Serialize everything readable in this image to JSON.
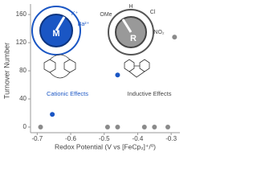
{
  "chart_data": {
    "type": "scatter",
    "x_label": "Redox Potential (V vs [FeCp₂]⁺/⁰)",
    "y_label": "Turnover Number",
    "series": [
      {
        "color": "#1a56c4",
        "x": [
          -0.655,
          -0.46
        ],
        "values": [
          18,
          74
        ]
      },
      {
        "color": "#8a8a8a",
        "x": [
          -0.69,
          -0.49,
          -0.46,
          -0.38,
          -0.35,
          -0.31,
          -0.29
        ],
        "values": [
          0,
          0,
          0,
          0,
          0,
          0,
          128
        ]
      }
    ],
    "xlim": [
      -0.72,
      -0.274
    ],
    "xticks": [
      -0.7,
      -0.6,
      -0.5,
      -0.4,
      -0.3
    ],
    "ylim": [
      -8,
      175
    ],
    "yticks": [
      0,
      40,
      80,
      120,
      160
    ],
    "annotations": [
      {
        "text": "Cationic Effects",
        "color": "#1a56c4"
      },
      {
        "text": "Inductive Effects",
        "color": "#444444"
      }
    ],
    "dial_cation": {
      "center": "M",
      "labels": [
        "K⁺",
        "Ba²⁺"
      ]
    },
    "dial_inductive": {
      "center": "R",
      "labels": [
        "OMe",
        "H",
        "Cl",
        "NO₂"
      ]
    }
  }
}
